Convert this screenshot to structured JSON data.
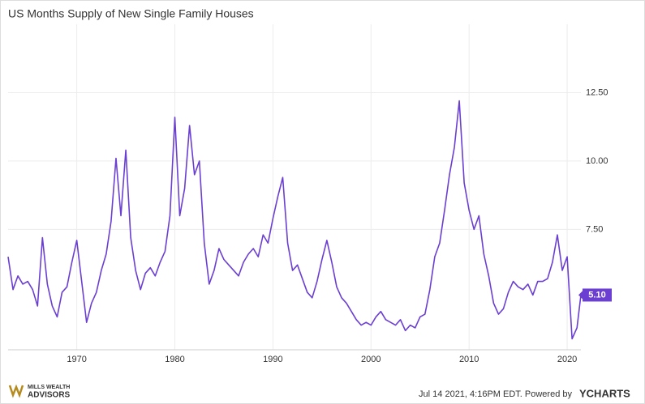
{
  "chart_data": {
    "type": "line",
    "title": "US Months Supply of New Single Family Houses",
    "x": [
      1963,
      1963.5,
      1964,
      1964.5,
      1965,
      1965.5,
      1966,
      1966.5,
      1967,
      1967.5,
      1968,
      1968.5,
      1969,
      1969.5,
      1970,
      1970.5,
      1971,
      1971.5,
      1972,
      1972.5,
      1973,
      1973.5,
      1974,
      1974.5,
      1975,
      1975.5,
      1976,
      1976.5,
      1977,
      1977.5,
      1978,
      1978.5,
      1979,
      1979.5,
      1980,
      1980.5,
      1981,
      1981.5,
      1982,
      1982.5,
      1983,
      1983.5,
      1984,
      1984.5,
      1985,
      1985.5,
      1986,
      1986.5,
      1987,
      1987.5,
      1988,
      1988.5,
      1989,
      1989.5,
      1990,
      1990.5,
      1991,
      1991.5,
      1992,
      1992.5,
      1993,
      1993.5,
      1994,
      1994.5,
      1995,
      1995.5,
      1996,
      1996.5,
      1997,
      1997.5,
      1998,
      1998.5,
      1999,
      1999.5,
      2000,
      2000.5,
      2001,
      2001.5,
      2002,
      2002.5,
      2003,
      2003.5,
      2004,
      2004.5,
      2005,
      2005.5,
      2006,
      2006.5,
      2007,
      2007.5,
      2008,
      2008.5,
      2009,
      2009.5,
      2010,
      2010.5,
      2011,
      2011.5,
      2012,
      2012.5,
      2013,
      2013.5,
      2014,
      2014.5,
      2015,
      2015.5,
      2016,
      2016.5,
      2017,
      2017.5,
      2018,
      2018.5,
      2019,
      2019.5,
      2020,
      2020.5,
      2021,
      2021.4
    ],
    "series": [
      {
        "name": "US Months Supply of New Single Family Houses",
        "color": "#6a3fd1",
        "values": [
          6.5,
          5.3,
          5.8,
          5.5,
          5.6,
          5.3,
          4.7,
          7.2,
          5.5,
          4.7,
          4.3,
          5.2,
          5.4,
          6.3,
          7.1,
          5.6,
          4.1,
          4.8,
          5.2,
          6.0,
          6.6,
          7.8,
          10.1,
          8.0,
          10.4,
          7.2,
          6.0,
          5.3,
          5.9,
          6.1,
          5.8,
          6.3,
          6.7,
          8.0,
          11.6,
          8.0,
          9.0,
          11.3,
          9.5,
          10.0,
          7.0,
          5.5,
          6.0,
          6.8,
          6.4,
          6.2,
          6.0,
          5.8,
          6.3,
          6.6,
          6.8,
          6.5,
          7.3,
          7.0,
          7.9,
          8.7,
          9.4,
          7.0,
          6.0,
          6.2,
          5.7,
          5.2,
          5.0,
          5.6,
          6.4,
          7.1,
          6.3,
          5.4,
          5.0,
          4.8,
          4.5,
          4.2,
          4.0,
          4.1,
          4.0,
          4.3,
          4.5,
          4.2,
          4.1,
          4.0,
          4.2,
          3.8,
          4.0,
          3.9,
          4.3,
          4.4,
          5.3,
          6.5,
          7.0,
          8.2,
          9.5,
          10.5,
          12.2,
          9.2,
          8.2,
          7.5,
          8.0,
          6.6,
          5.8,
          4.8,
          4.4,
          4.6,
          5.2,
          5.6,
          5.4,
          5.3,
          5.5,
          5.1,
          5.6,
          5.6,
          5.7,
          6.3,
          7.3,
          6.0,
          6.5,
          3.5,
          3.9,
          5.1
        ],
        "value_labels": [
          null,
          null,
          null,
          null,
          null,
          null,
          null,
          null,
          null,
          null,
          null,
          null,
          null,
          null,
          null,
          null,
          null,
          null,
          null,
          null,
          null,
          null,
          null,
          null,
          null,
          null,
          null,
          null,
          null,
          null,
          null,
          null,
          null,
          null,
          null,
          null,
          null,
          null,
          null,
          null,
          null,
          null,
          null,
          null,
          null,
          null,
          null,
          null,
          null,
          null,
          null,
          null,
          null,
          null,
          null,
          null,
          null,
          null,
          null,
          null,
          null,
          null,
          null,
          null,
          null,
          null,
          null,
          null,
          null,
          null,
          null,
          null,
          null,
          null,
          null,
          null,
          null,
          null,
          null,
          null,
          null,
          null,
          null,
          null,
          null,
          null,
          null,
          null,
          null,
          null,
          null,
          null,
          null,
          null,
          null,
          null,
          null,
          null,
          null,
          null,
          null,
          null,
          null,
          null,
          null,
          null,
          null,
          null,
          null,
          null,
          null,
          null,
          null,
          null,
          null,
          null,
          null,
          "5.10"
        ]
      }
    ],
    "xlim": [
      1963,
      2021.4
    ],
    "xticks": [
      1970,
      1980,
      1990,
      2000,
      2010,
      2020
    ],
    "ylim": [
      3.1,
      15.0
    ],
    "yticks": [
      {
        "value": 7.5,
        "label": "7.50"
      },
      {
        "value": 10,
        "label": "10.00"
      },
      {
        "value": 12.5,
        "label": "12.50"
      }
    ],
    "grid": true
  },
  "footer": {
    "brand_top": "MILLS WEALTH",
    "brand_bottom": "ADVISORS",
    "timestamp": "Jul 14 2021, 4:16PM EDT. Powered by",
    "provider": "YCHARTS"
  }
}
